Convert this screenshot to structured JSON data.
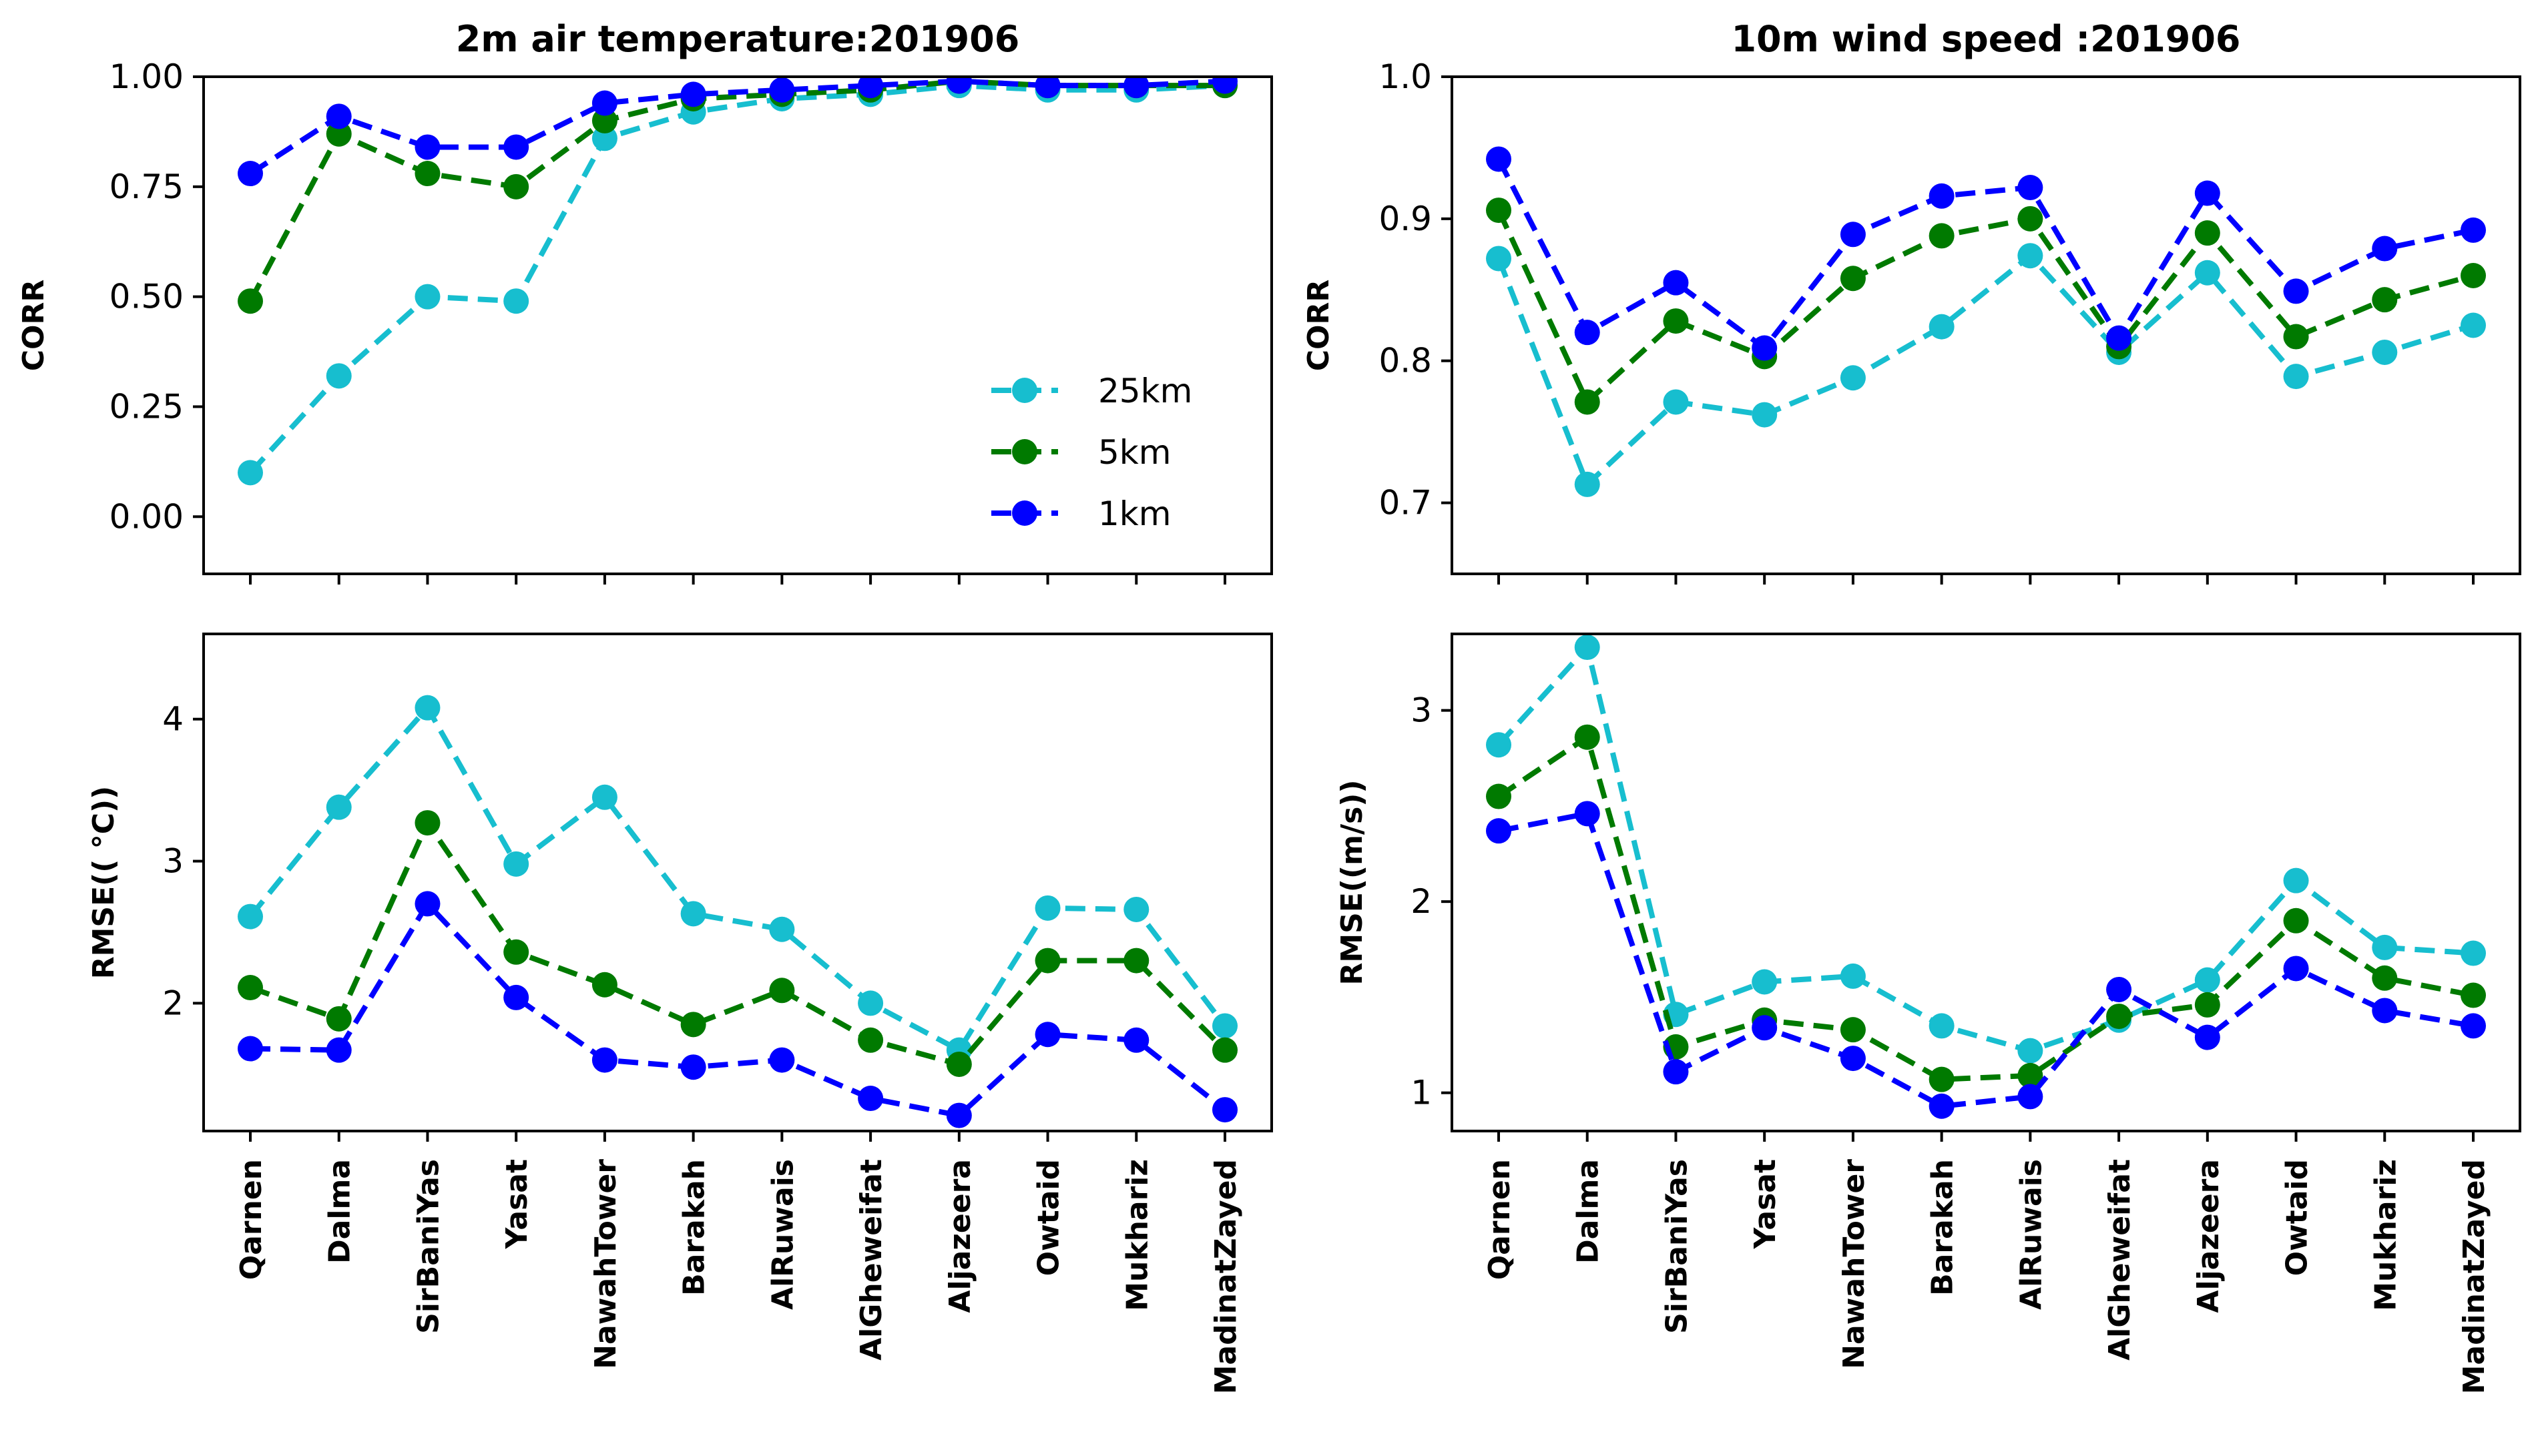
{
  "series_styles": [
    {
      "name": "25km",
      "color": "#17becf"
    },
    {
      "name": "5km",
      "color": "#007a00"
    },
    {
      "name": "1km",
      "color": "#0000ff"
    }
  ],
  "chart_data": [
    {
      "id": "temp-corr",
      "type": "line",
      "title": "2m air temperature:201906",
      "xlabel": "",
      "ylabel": "CORR",
      "categories": [
        "Qarnen",
        "Dalma",
        "SirBaniYas",
        "Yasat",
        "NawahTower",
        "Barakah",
        "AlRuwais",
        "AlGheweifat",
        "Aljazeera",
        "Owtaid",
        "Mukhariz",
        "MadinatZayed"
      ],
      "ylim": [
        -0.13,
        1.0
      ],
      "yticks": [
        0.0,
        0.25,
        0.5,
        0.75,
        1.0
      ],
      "ytick_labels": [
        "0.00",
        "0.25",
        "0.50",
        "0.75",
        "1.00"
      ],
      "show_xtick_labels": false,
      "legend": {
        "position": "lower-right",
        "entries": [
          "25km",
          "5km",
          "1km"
        ]
      },
      "series": [
        {
          "name": "25km",
          "values": [
            0.1,
            0.32,
            0.5,
            0.49,
            0.86,
            0.92,
            0.95,
            0.96,
            0.98,
            0.97,
            0.97,
            0.98
          ]
        },
        {
          "name": "5km",
          "values": [
            0.49,
            0.87,
            0.78,
            0.75,
            0.9,
            0.95,
            0.96,
            0.97,
            0.99,
            0.98,
            0.98,
            0.98
          ]
        },
        {
          "name": "1km",
          "values": [
            0.78,
            0.91,
            0.84,
            0.84,
            0.94,
            0.96,
            0.97,
            0.98,
            0.99,
            0.98,
            0.98,
            0.99
          ]
        }
      ]
    },
    {
      "id": "wind-corr",
      "type": "line",
      "title": "10m wind speed :201906",
      "xlabel": "",
      "ylabel": "CORR",
      "categories": [
        "Qarnen",
        "Dalma",
        "SirBaniYas",
        "Yasat",
        "NawahTower",
        "Barakah",
        "AlRuwais",
        "AlGheweifat",
        "Aljazeera",
        "Owtaid",
        "Mukhariz",
        "MadinatZayed"
      ],
      "ylim": [
        0.65,
        1.0
      ],
      "yticks": [
        0.7,
        0.8,
        0.9,
        1.0
      ],
      "ytick_labels": [
        "0.7",
        "0.8",
        "0.9",
        "1.0"
      ],
      "show_xtick_labels": false,
      "series": [
        {
          "name": "25km",
          "values": [
            0.872,
            0.713,
            0.771,
            0.762,
            0.788,
            0.824,
            0.874,
            0.806,
            0.862,
            0.789,
            0.806,
            0.825
          ]
        },
        {
          "name": "5km",
          "values": [
            0.906,
            0.771,
            0.828,
            0.803,
            0.858,
            0.888,
            0.9,
            0.81,
            0.89,
            0.817,
            0.843,
            0.86
          ]
        },
        {
          "name": "1km",
          "values": [
            0.942,
            0.82,
            0.855,
            0.809,
            0.889,
            0.916,
            0.922,
            0.816,
            0.918,
            0.849,
            0.879,
            0.892
          ]
        }
      ]
    },
    {
      "id": "temp-rmse",
      "type": "line",
      "title": "",
      "xlabel": "",
      "ylabel": "RMSE(( °C))",
      "categories": [
        "Qarnen",
        "Dalma",
        "SirBaniYas",
        "Yasat",
        "NawahTower",
        "Barakah",
        "AlRuwais",
        "AlGheweifat",
        "Aljazeera",
        "Owtaid",
        "Mukhariz",
        "MadinatZayed"
      ],
      "ylim": [
        1.1,
        4.6
      ],
      "yticks": [
        2,
        3,
        4
      ],
      "ytick_labels": [
        "2",
        "3",
        "4"
      ],
      "show_xtick_labels": true,
      "series": [
        {
          "name": "25km",
          "values": [
            2.61,
            3.38,
            4.08,
            2.98,
            3.45,
            2.63,
            2.52,
            2.0,
            1.67,
            2.67,
            2.66,
            1.84
          ]
        },
        {
          "name": "5km",
          "values": [
            2.11,
            1.89,
            3.27,
            2.36,
            2.13,
            1.85,
            2.09,
            1.74,
            1.57,
            2.3,
            2.3,
            1.67
          ]
        },
        {
          "name": "1km",
          "values": [
            1.68,
            1.67,
            2.7,
            2.04,
            1.6,
            1.55,
            1.6,
            1.33,
            1.21,
            1.78,
            1.74,
            1.25
          ]
        }
      ]
    },
    {
      "id": "wind-rmse",
      "type": "line",
      "title": "",
      "xlabel": "",
      "ylabel": "RMSE((m/s))",
      "categories": [
        "Qarnen",
        "Dalma",
        "SirBaniYas",
        "Yasat",
        "NawahTower",
        "Barakah",
        "AlRuwais",
        "AlGheweifat",
        "Aljazeera",
        "Owtaid",
        "Mukhariz",
        "MadinatZayed"
      ],
      "ylim": [
        0.8,
        3.4
      ],
      "yticks": [
        1,
        2,
        3
      ],
      "ytick_labels": [
        "1",
        "2",
        "3"
      ],
      "show_xtick_labels": true,
      "series": [
        {
          "name": "25km",
          "values": [
            2.82,
            3.33,
            1.41,
            1.58,
            1.61,
            1.35,
            1.22,
            1.38,
            1.59,
            2.11,
            1.76,
            1.73
          ]
        },
        {
          "name": "5km",
          "values": [
            2.55,
            2.86,
            1.24,
            1.38,
            1.33,
            1.07,
            1.09,
            1.4,
            1.46,
            1.9,
            1.6,
            1.51
          ]
        },
        {
          "name": "1km",
          "values": [
            2.37,
            2.46,
            1.11,
            1.34,
            1.18,
            0.93,
            0.98,
            1.54,
            1.29,
            1.65,
            1.43,
            1.35
          ]
        }
      ]
    }
  ]
}
